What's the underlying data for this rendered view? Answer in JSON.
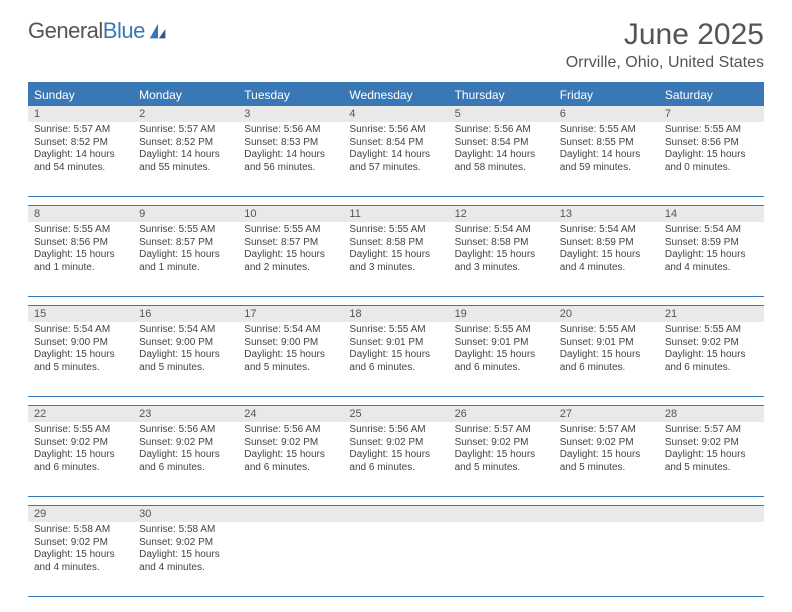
{
  "brand": {
    "part1": "General",
    "part2": "Blue"
  },
  "title": "June 2025",
  "location": "Orrville, Ohio, United States",
  "colors": {
    "accent": "#3a78b5",
    "headerText": "#ffffff",
    "dayNumBg": "#e9e9e9",
    "bodyText": "#444444",
    "titleText": "#555555",
    "pageBg": "#ffffff"
  },
  "typography": {
    "monthTitleSize": 30,
    "locationSize": 16,
    "dayHeadSize": 12,
    "dayNumSize": 11,
    "bodySize": 10
  },
  "dayHeaders": [
    "Sunday",
    "Monday",
    "Tuesday",
    "Wednesday",
    "Thursday",
    "Friday",
    "Saturday"
  ],
  "weeks": [
    [
      {
        "n": "1",
        "sunrise": "Sunrise: 5:57 AM",
        "sunset": "Sunset: 8:52 PM",
        "day1": "Daylight: 14 hours",
        "day2": "and 54 minutes."
      },
      {
        "n": "2",
        "sunrise": "Sunrise: 5:57 AM",
        "sunset": "Sunset: 8:52 PM",
        "day1": "Daylight: 14 hours",
        "day2": "and 55 minutes."
      },
      {
        "n": "3",
        "sunrise": "Sunrise: 5:56 AM",
        "sunset": "Sunset: 8:53 PM",
        "day1": "Daylight: 14 hours",
        "day2": "and 56 minutes."
      },
      {
        "n": "4",
        "sunrise": "Sunrise: 5:56 AM",
        "sunset": "Sunset: 8:54 PM",
        "day1": "Daylight: 14 hours",
        "day2": "and 57 minutes."
      },
      {
        "n": "5",
        "sunrise": "Sunrise: 5:56 AM",
        "sunset": "Sunset: 8:54 PM",
        "day1": "Daylight: 14 hours",
        "day2": "and 58 minutes."
      },
      {
        "n": "6",
        "sunrise": "Sunrise: 5:55 AM",
        "sunset": "Sunset: 8:55 PM",
        "day1": "Daylight: 14 hours",
        "day2": "and 59 minutes."
      },
      {
        "n": "7",
        "sunrise": "Sunrise: 5:55 AM",
        "sunset": "Sunset: 8:56 PM",
        "day1": "Daylight: 15 hours",
        "day2": "and 0 minutes."
      }
    ],
    [
      {
        "n": "8",
        "sunrise": "Sunrise: 5:55 AM",
        "sunset": "Sunset: 8:56 PM",
        "day1": "Daylight: 15 hours",
        "day2": "and 1 minute."
      },
      {
        "n": "9",
        "sunrise": "Sunrise: 5:55 AM",
        "sunset": "Sunset: 8:57 PM",
        "day1": "Daylight: 15 hours",
        "day2": "and 1 minute."
      },
      {
        "n": "10",
        "sunrise": "Sunrise: 5:55 AM",
        "sunset": "Sunset: 8:57 PM",
        "day1": "Daylight: 15 hours",
        "day2": "and 2 minutes."
      },
      {
        "n": "11",
        "sunrise": "Sunrise: 5:55 AM",
        "sunset": "Sunset: 8:58 PM",
        "day1": "Daylight: 15 hours",
        "day2": "and 3 minutes."
      },
      {
        "n": "12",
        "sunrise": "Sunrise: 5:54 AM",
        "sunset": "Sunset: 8:58 PM",
        "day1": "Daylight: 15 hours",
        "day2": "and 3 minutes."
      },
      {
        "n": "13",
        "sunrise": "Sunrise: 5:54 AM",
        "sunset": "Sunset: 8:59 PM",
        "day1": "Daylight: 15 hours",
        "day2": "and 4 minutes."
      },
      {
        "n": "14",
        "sunrise": "Sunrise: 5:54 AM",
        "sunset": "Sunset: 8:59 PM",
        "day1": "Daylight: 15 hours",
        "day2": "and 4 minutes."
      }
    ],
    [
      {
        "n": "15",
        "sunrise": "Sunrise: 5:54 AM",
        "sunset": "Sunset: 9:00 PM",
        "day1": "Daylight: 15 hours",
        "day2": "and 5 minutes."
      },
      {
        "n": "16",
        "sunrise": "Sunrise: 5:54 AM",
        "sunset": "Sunset: 9:00 PM",
        "day1": "Daylight: 15 hours",
        "day2": "and 5 minutes."
      },
      {
        "n": "17",
        "sunrise": "Sunrise: 5:54 AM",
        "sunset": "Sunset: 9:00 PM",
        "day1": "Daylight: 15 hours",
        "day2": "and 5 minutes."
      },
      {
        "n": "18",
        "sunrise": "Sunrise: 5:55 AM",
        "sunset": "Sunset: 9:01 PM",
        "day1": "Daylight: 15 hours",
        "day2": "and 6 minutes."
      },
      {
        "n": "19",
        "sunrise": "Sunrise: 5:55 AM",
        "sunset": "Sunset: 9:01 PM",
        "day1": "Daylight: 15 hours",
        "day2": "and 6 minutes."
      },
      {
        "n": "20",
        "sunrise": "Sunrise: 5:55 AM",
        "sunset": "Sunset: 9:01 PM",
        "day1": "Daylight: 15 hours",
        "day2": "and 6 minutes."
      },
      {
        "n": "21",
        "sunrise": "Sunrise: 5:55 AM",
        "sunset": "Sunset: 9:02 PM",
        "day1": "Daylight: 15 hours",
        "day2": "and 6 minutes."
      }
    ],
    [
      {
        "n": "22",
        "sunrise": "Sunrise: 5:55 AM",
        "sunset": "Sunset: 9:02 PM",
        "day1": "Daylight: 15 hours",
        "day2": "and 6 minutes."
      },
      {
        "n": "23",
        "sunrise": "Sunrise: 5:56 AM",
        "sunset": "Sunset: 9:02 PM",
        "day1": "Daylight: 15 hours",
        "day2": "and 6 minutes."
      },
      {
        "n": "24",
        "sunrise": "Sunrise: 5:56 AM",
        "sunset": "Sunset: 9:02 PM",
        "day1": "Daylight: 15 hours",
        "day2": "and 6 minutes."
      },
      {
        "n": "25",
        "sunrise": "Sunrise: 5:56 AM",
        "sunset": "Sunset: 9:02 PM",
        "day1": "Daylight: 15 hours",
        "day2": "and 6 minutes."
      },
      {
        "n": "26",
        "sunrise": "Sunrise: 5:57 AM",
        "sunset": "Sunset: 9:02 PM",
        "day1": "Daylight: 15 hours",
        "day2": "and 5 minutes."
      },
      {
        "n": "27",
        "sunrise": "Sunrise: 5:57 AM",
        "sunset": "Sunset: 9:02 PM",
        "day1": "Daylight: 15 hours",
        "day2": "and 5 minutes."
      },
      {
        "n": "28",
        "sunrise": "Sunrise: 5:57 AM",
        "sunset": "Sunset: 9:02 PM",
        "day1": "Daylight: 15 hours",
        "day2": "and 5 minutes."
      }
    ],
    [
      {
        "n": "29",
        "sunrise": "Sunrise: 5:58 AM",
        "sunset": "Sunset: 9:02 PM",
        "day1": "Daylight: 15 hours",
        "day2": "and 4 minutes."
      },
      {
        "n": "30",
        "sunrise": "Sunrise: 5:58 AM",
        "sunset": "Sunset: 9:02 PM",
        "day1": "Daylight: 15 hours",
        "day2": "and 4 minutes."
      },
      {
        "empty": true
      },
      {
        "empty": true
      },
      {
        "empty": true
      },
      {
        "empty": true
      },
      {
        "empty": true
      }
    ]
  ]
}
